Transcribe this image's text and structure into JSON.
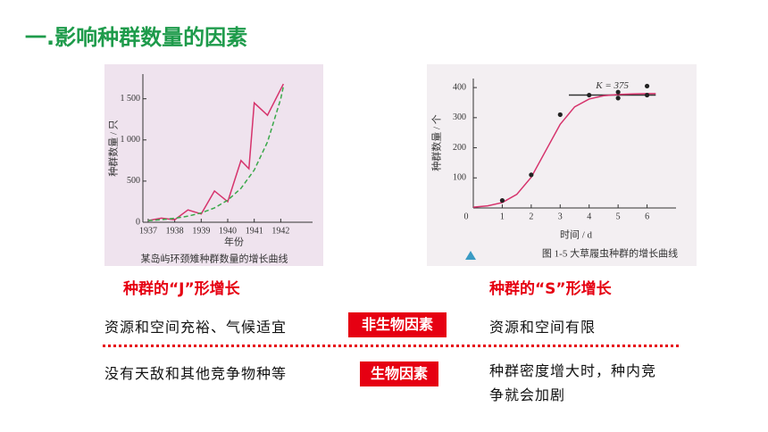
{
  "title": "一.影响种群数量的因素",
  "chart_data": [
    {
      "type": "line",
      "caption": "某岛屿环颈雉种群数量的增长曲线",
      "xlabel": "年份",
      "ylabel": "种群数量 / 只",
      "xlim": [
        1936.8,
        1943.2
      ],
      "ylim": [
        0,
        1800
      ],
      "xticks": [
        1937,
        1938,
        1939,
        1940,
        1941,
        1942
      ],
      "yticks": [
        0,
        500,
        {
          "value": 1000,
          "label": "1 000"
        },
        {
          "value": 1500,
          "label": "1 500"
        }
      ],
      "series": [
        {
          "type": "line",
          "color": "#d6336c",
          "dash": false,
          "x": [
            1937,
            1937.5,
            1938,
            1938.5,
            1939,
            1939.5,
            1940,
            1940.5,
            1940.8,
            1941,
            1941.5,
            1942.1
          ],
          "values": [
            20,
            50,
            30,
            150,
            100,
            380,
            250,
            750,
            650,
            1450,
            1300,
            1680
          ]
        },
        {
          "type": "line",
          "color": "#3aa84a",
          "dash": true,
          "x": [
            1937,
            1937.5,
            1938,
            1938.5,
            1939,
            1939.5,
            1940,
            1940.5,
            1941,
            1941.5,
            1942,
            1942.1
          ],
          "values": [
            20,
            31,
            48,
            74,
            113,
            174,
            268,
            412,
            634,
            975,
            1500,
            1650
          ]
        }
      ]
    },
    {
      "type": "scatter",
      "caption": "图 1-5  大草履虫种群的增长曲线",
      "xlabel": "时间 / d",
      "ylabel": "种群数量 / 个",
      "xlim": [
        0,
        7
      ],
      "ylim": [
        0,
        430
      ],
      "xticks": [
        0,
        1,
        2,
        3,
        4,
        5,
        6
      ],
      "yticks": [
        100,
        200,
        300,
        400
      ],
      "k_line": {
        "label": "K = 375",
        "value": 375,
        "xrange": [
          3.3,
          6.3
        ]
      },
      "series": [
        {
          "type": "line",
          "color": "#d6336c",
          "dash": false,
          "x": [
            0,
            0.5,
            1,
            1.5,
            2,
            2.5,
            3,
            3.5,
            4,
            4.5,
            5,
            5.5,
            6,
            6.3
          ],
          "values": [
            2.5,
            7,
            18,
            45,
            102,
            190,
            278,
            336,
            362,
            373,
            377,
            379,
            380,
            380
          ]
        },
        {
          "type": "scatter",
          "color": "#222222",
          "x": [
            1,
            2,
            3,
            4,
            5,
            5,
            6,
            6
          ],
          "values": [
            25,
            110,
            310,
            375,
            385,
            365,
            405,
            375
          ]
        }
      ]
    }
  ],
  "labels": {
    "j": "种群的“J”形增长",
    "s": "种群的“S”形增长"
  },
  "rows": [
    {
      "left": "资源和空间充裕、气候适宜",
      "factor": "非生物因素",
      "right": "资源和空间有限"
    },
    {
      "left": "没有天敌和其他竞争物种等",
      "factor": "生物因素",
      "right": "种群密度增大时，种内竞争就会加剧"
    }
  ]
}
